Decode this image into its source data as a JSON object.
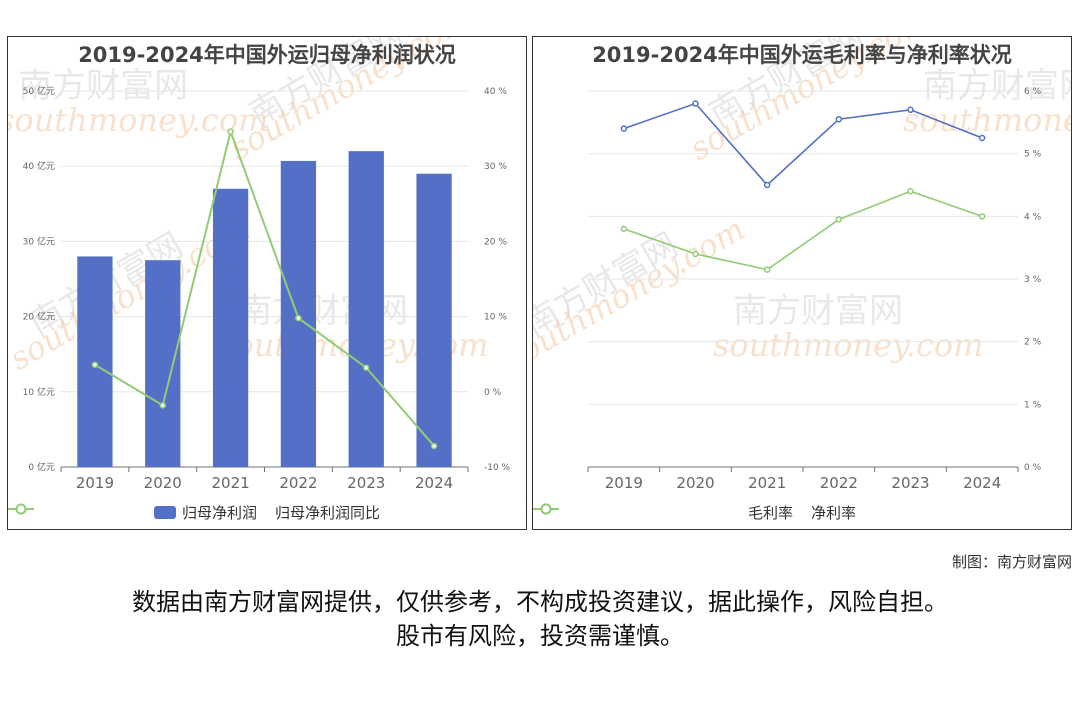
{
  "charts": [
    {
      "title": "2019-2024年中国外运归母净利润状况",
      "chart_data": {
        "type": "bar",
        "categories": [
          "2019",
          "2020",
          "2021",
          "2022",
          "2023",
          "2024"
        ],
        "series": [
          {
            "name": "归母净利润",
            "type": "bar",
            "axis": "left",
            "values": [
              28.0,
              27.5,
              37.0,
              40.7,
              42.0,
              39.0
            ],
            "color": "#5470c6"
          },
          {
            "name": "归母净利润同比",
            "type": "line",
            "axis": "right",
            "values": [
              3.6,
              -1.8,
              34.6,
              9.8,
              3.2,
              -7.2
            ],
            "color": "#91cc75"
          }
        ],
        "left_axis": {
          "min": 0,
          "max": 50,
          "ticks": [
            0,
            10,
            20,
            30,
            40,
            50
          ],
          "tick_labels": [
            "0 亿元",
            "10 亿元",
            "20 亿元",
            "30 亿元",
            "40 亿元",
            "50 亿元"
          ]
        },
        "right_axis": {
          "min": -10,
          "max": 40,
          "ticks": [
            -10,
            0,
            10,
            20,
            30,
            40
          ],
          "tick_labels": [
            "-10 %",
            "0 %",
            "10 %",
            "20 %",
            "30 %",
            "40 %"
          ]
        },
        "grid": true,
        "legend": "bottom-center"
      }
    },
    {
      "title": "2019-2024年中国外运毛利率与净利率状况",
      "chart_data": {
        "type": "line",
        "categories": [
          "2019",
          "2020",
          "2021",
          "2022",
          "2023",
          "2024"
        ],
        "series": [
          {
            "name": "毛利率",
            "values": [
              5.4,
              5.8,
              4.5,
              5.55,
              5.7,
              5.25
            ],
            "color": "#5470c6"
          },
          {
            "name": "净利率",
            "values": [
              3.8,
              3.4,
              3.15,
              3.95,
              4.4,
              4.0
            ],
            "color": "#91cc75"
          }
        ],
        "right_axis": {
          "min": 0,
          "max": 6,
          "ticks": [
            0,
            1,
            2,
            3,
            4,
            5,
            6
          ],
          "tick_labels": [
            "0 %",
            "1 %",
            "2 %",
            "3 %",
            "4 %",
            "5 %",
            "6 %"
          ]
        },
        "grid": true,
        "legend": "bottom-center"
      }
    }
  ],
  "watermark": {
    "brand": "南方财富网",
    "url": "southmoney.com"
  },
  "credit": "制图：南方财富网",
  "disclaimer": {
    "line1": "数据由南方财富网提供，仅供参考，不构成投资建议，据此操作，风险自担。",
    "line2": "股市有风险，投资需谨慎。"
  }
}
